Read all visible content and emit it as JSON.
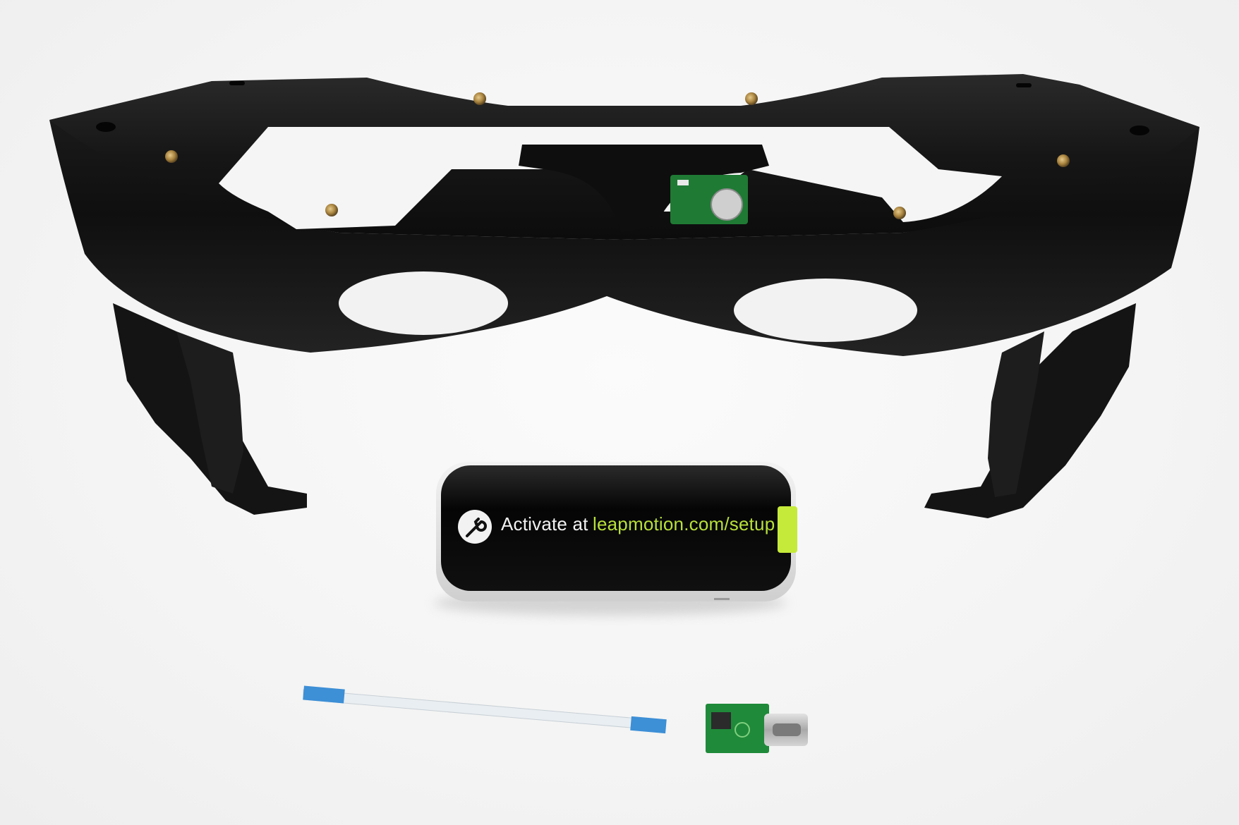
{
  "scene": {
    "background": "#f5f5f5"
  },
  "objects": {
    "headset_frame": {
      "color": "#151515"
    },
    "leap_motion_controller": {
      "activate_label": "Activate at",
      "setup_url": "leapmotion.com/setup",
      "icon": "wrench-icon",
      "tab_color": "#c6ea3a",
      "url_color": "#b8e03a"
    },
    "ribbon_cable": {
      "tab_color": "#3d8fd6"
    },
    "usb_adapter_board": {
      "pcb_color": "#1f8a3a"
    }
  }
}
